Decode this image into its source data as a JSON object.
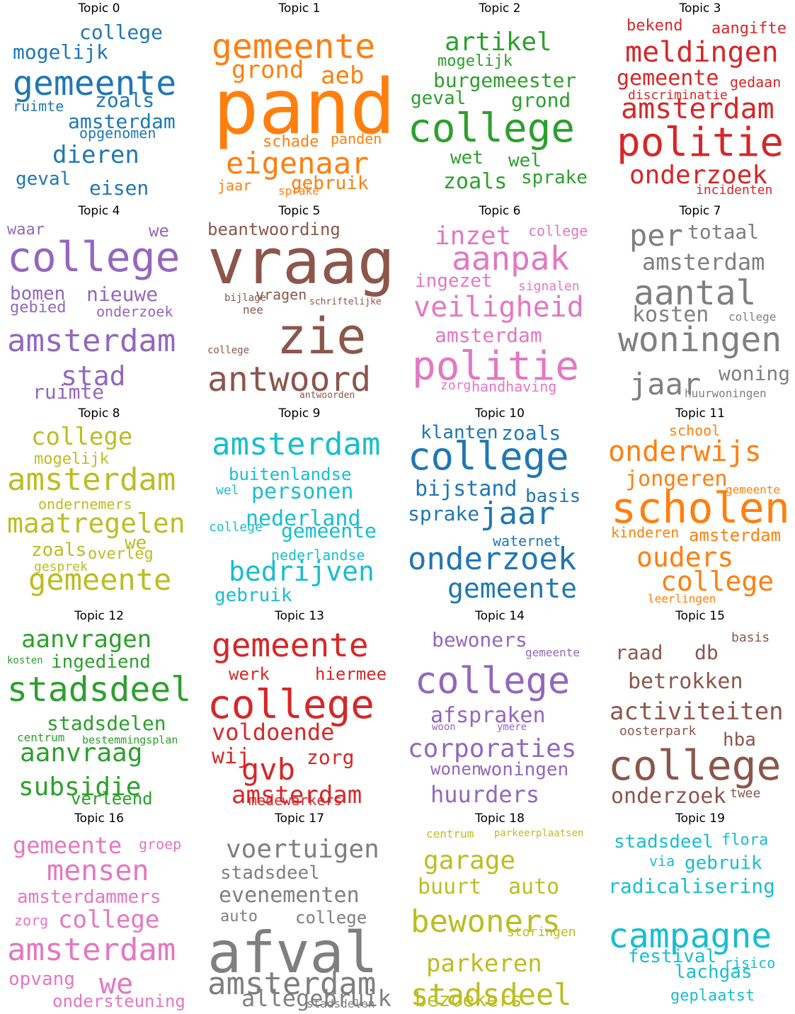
{
  "figure": {
    "topics": [
      {
        "title": "Topic 0",
        "color": "#1f77b4",
        "words": [
          "gemeente",
          "college",
          "mogelijk",
          "zoals",
          "ruimte",
          "amsterdam",
          "opgenomen",
          "dieren",
          "geval",
          "eisen"
        ]
      },
      {
        "title": "Topic 1",
        "color": "#ff7f0e",
        "words": [
          "gemeente",
          "grond",
          "aeb",
          "pand",
          "schade",
          "panden",
          "eigenaar",
          "jaar",
          "sprake",
          "gebruik"
        ]
      },
      {
        "title": "Topic 2",
        "color": "#2ca02c",
        "words": [
          "artikel",
          "mogelijk",
          "burgemeester",
          "geval",
          "grond",
          "college",
          "wet",
          "wel",
          "zoals",
          "sprake"
        ]
      },
      {
        "title": "Topic 3",
        "color": "#d62728",
        "words": [
          "bekend",
          "aangifte",
          "meldingen",
          "gemeente",
          "gedaan",
          "discriminatie",
          "amsterdam",
          "politie",
          "onderzoek",
          "incidenten"
        ]
      },
      {
        "title": "Topic 4",
        "color": "#9467bd",
        "words": [
          "waar",
          "we",
          "college",
          "bomen",
          "nieuwe",
          "gebied",
          "onderzoek",
          "amsterdam",
          "stad",
          "ruimte"
        ]
      },
      {
        "title": "Topic 5",
        "color": "#8c564b",
        "words": [
          "beantwoording",
          "vraag",
          "bijlage",
          "vragen",
          "schriftelijke",
          "nee",
          "zie",
          "college",
          "antwoord",
          "antwoorden"
        ]
      },
      {
        "title": "Topic 6",
        "color": "#e377c2",
        "words": [
          "inzet",
          "college",
          "aanpak",
          "ingezet",
          "signalen",
          "veiligheid",
          "amsterdam",
          "politie",
          "zorg",
          "handhaving"
        ]
      },
      {
        "title": "Topic 7",
        "color": "#7f7f7f",
        "words": [
          "per",
          "totaal",
          "amsterdam",
          "aantal",
          "kosten",
          "college",
          "woningen",
          "jaar",
          "woning",
          "huurwoningen"
        ]
      },
      {
        "title": "Topic 8",
        "color": "#bcbd22",
        "words": [
          "college",
          "mogelijk",
          "amsterdam",
          "ondernemers",
          "maatregelen",
          "we",
          "zoals",
          "overleg",
          "gesprek",
          "gemeente"
        ]
      },
      {
        "title": "Topic 9",
        "color": "#17becf",
        "words": [
          "amsterdam",
          "buitenlandse",
          "wel",
          "personen",
          "nederland",
          "college",
          "gemeente",
          "nederlandse",
          "bedrijven",
          "gebruik"
        ]
      },
      {
        "title": "Topic 10",
        "color": "#1f77b4",
        "words": [
          "klanten",
          "zoals",
          "college",
          "bijstand",
          "basis",
          "sprake",
          "jaar",
          "waternet",
          "onderzoek",
          "gemeente"
        ]
      },
      {
        "title": "Topic 11",
        "color": "#ff7f0e",
        "words": [
          "school",
          "onderwijs",
          "jongeren",
          "gemeente",
          "scholen",
          "kinderen",
          "amsterdam",
          "ouders",
          "college",
          "leerlingen"
        ]
      },
      {
        "title": "Topic 12",
        "color": "#2ca02c",
        "words": [
          "aanvragen",
          "kosten",
          "ingediend",
          "stadsdeel",
          "stadsdelen",
          "centrum",
          "bestemmingsplan",
          "aanvraag",
          "subsidie",
          "verleend"
        ]
      },
      {
        "title": "Topic 13",
        "color": "#d62728",
        "words": [
          "gemeente",
          "werk",
          "hiermee",
          "college",
          "voldoende",
          "wij",
          "gvb",
          "zorg",
          "amsterdam",
          "medewerkers"
        ]
      },
      {
        "title": "Topic 14",
        "color": "#9467bd",
        "words": [
          "bewoners",
          "gemeente",
          "college",
          "afspraken",
          "woon",
          "ymere",
          "corporaties",
          "wonen",
          "woningen",
          "huurders"
        ]
      },
      {
        "title": "Topic 15",
        "color": "#8c564b",
        "words": [
          "basis",
          "raad",
          "db",
          "betrokken",
          "activiteiten",
          "oosterpark",
          "hba",
          "college",
          "onderzoek",
          "twee"
        ]
      },
      {
        "title": "Topic 16",
        "color": "#e377c2",
        "words": [
          "gemeente",
          "groep",
          "mensen",
          "amsterdammers",
          "zorg",
          "college",
          "amsterdam",
          "opvang",
          "we",
          "ondersteuning"
        ]
      },
      {
        "title": "Topic 17",
        "color": "#7f7f7f",
        "words": [
          "voertuigen",
          "stadsdeel",
          "evenementen",
          "auto",
          "college",
          "afval",
          "amsterdam",
          "allegebruik",
          "stadsdelen"
        ]
      },
      {
        "title": "Topic 18",
        "color": "#bcbd22",
        "words": [
          "centrum",
          "parkeerplaatsen",
          "garage",
          "buurt",
          "auto",
          "bewoners",
          "storingen",
          "parkeren",
          "stadsdeel",
          "bezoekers"
        ]
      },
      {
        "title": "Topic 19",
        "color": "#17becf",
        "words": [
          "stadsdeel",
          "flora",
          "via",
          "gebruik",
          "radicalisering",
          "campagne",
          "festival",
          "risico",
          "lachgas",
          "geplaatst"
        ]
      }
    ]
  }
}
